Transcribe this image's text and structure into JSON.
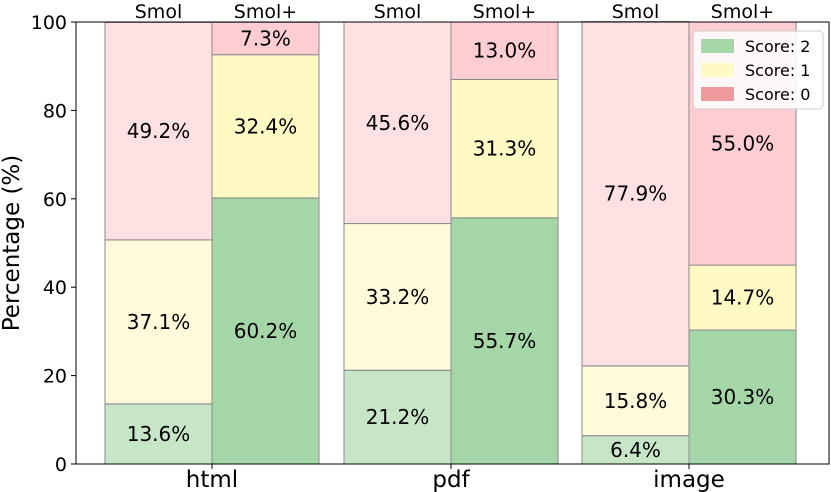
{
  "chart_data": {
    "type": "bar",
    "stacked": true,
    "categories": [
      "html",
      "pdf",
      "image"
    ],
    "groups": [
      "Smol",
      "Smol+"
    ],
    "ylabel": "Percentage (%)",
    "ylim": [
      0,
      100
    ],
    "yticks": [
      0,
      20,
      40,
      60,
      80,
      100
    ],
    "grid": false,
    "legend": {
      "position": "top-right",
      "entries": [
        "Score: 2",
        "Score: 1",
        "Score: 0"
      ]
    },
    "colors": {
      "score2": "#a5d6a7",
      "score1": "#fff9c4",
      "score0": "#ffcdd2",
      "border": "#8a8a8a"
    },
    "faded_group": "Smol",
    "series": [
      {
        "name": "Score: 2",
        "values": {
          "Smol": [
            13.6,
            21.2,
            6.4
          ],
          "Smol+": [
            60.2,
            55.7,
            30.3
          ]
        }
      },
      {
        "name": "Score: 1",
        "values": {
          "Smol": [
            37.1,
            33.2,
            15.8
          ],
          "Smol+": [
            32.4,
            31.3,
            14.7
          ]
        }
      },
      {
        "name": "Score: 0",
        "values": {
          "Smol": [
            49.2,
            45.6,
            77.9
          ],
          "Smol+": [
            7.3,
            13.0,
            55.0
          ]
        }
      }
    ],
    "data_labels": {
      "Score: 2": {
        "Smol": [
          "13.6%",
          "21.2%",
          "6.4%"
        ],
        "Smol+": [
          "60.2%",
          "55.7%",
          "30.3%"
        ]
      },
      "Score: 1": {
        "Smol": [
          "37.1%",
          "33.2%",
          "15.8%"
        ],
        "Smol+": [
          "32.4%",
          "31.3%",
          "14.7%"
        ]
      },
      "Score: 0": {
        "Smol": [
          "49.2%",
          "45.6%",
          "77.9%"
        ],
        "Smol+": [
          "7.3%",
          "13.0%",
          "55.0%"
        ]
      }
    }
  }
}
